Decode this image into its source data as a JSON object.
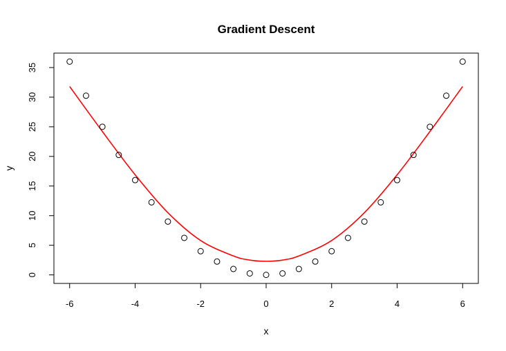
{
  "chart_data": {
    "type": "scatter",
    "title": "Gradient Descent",
    "xlabel": "x",
    "ylabel": "y",
    "xlim": [
      -6.48,
      6.48
    ],
    "ylim": [
      -1.44,
      37.44
    ],
    "x_ticks": [
      -6,
      -4,
      -2,
      0,
      2,
      4,
      6
    ],
    "x_tick_labels": [
      "-6",
      "-4",
      "-2",
      "0",
      "2",
      "4",
      "6"
    ],
    "y_ticks": [
      0,
      5,
      10,
      15,
      20,
      25,
      30,
      35
    ],
    "y_tick_labels": [
      "0",
      "5",
      "10",
      "15",
      "20",
      "25",
      "30",
      "35"
    ],
    "grid": false,
    "legend": "none",
    "series": [
      {
        "type": "scatter",
        "marker": "open-circle",
        "color": "#000000",
        "points": [
          [
            -6,
            36
          ],
          [
            -5.5,
            30.25
          ],
          [
            -5,
            25
          ],
          [
            -4.5,
            20.25
          ],
          [
            -4,
            16
          ],
          [
            -3.5,
            12.25
          ],
          [
            -3,
            9
          ],
          [
            -2.5,
            6.25
          ],
          [
            -2,
            4
          ],
          [
            -1.5,
            2.25
          ],
          [
            -1,
            1
          ],
          [
            -0.5,
            0.25
          ],
          [
            0,
            0
          ],
          [
            0.5,
            0.25
          ],
          [
            1,
            1
          ],
          [
            1.5,
            2.25
          ],
          [
            2,
            4
          ],
          [
            2.5,
            6.25
          ],
          [
            3,
            9
          ],
          [
            3.5,
            12.25
          ],
          [
            4,
            16
          ],
          [
            4.5,
            20.25
          ],
          [
            5,
            25
          ],
          [
            5.5,
            30.25
          ],
          [
            6,
            36
          ]
        ]
      },
      {
        "type": "line",
        "color": "#ff0000",
        "points": [
          [
            -6,
            31.8
          ],
          [
            -5,
            24.2
          ],
          [
            -4,
            16.9
          ],
          [
            -3,
            10.5
          ],
          [
            -2,
            5.8
          ],
          [
            -1,
            3.2
          ],
          [
            -0.5,
            2.5
          ],
          [
            0,
            2.3
          ],
          [
            0.5,
            2.5
          ],
          [
            1,
            3.2
          ],
          [
            2,
            5.8
          ],
          [
            3,
            10.5
          ],
          [
            4,
            16.9
          ],
          [
            5,
            24.2
          ],
          [
            6,
            31.8
          ]
        ]
      }
    ]
  }
}
